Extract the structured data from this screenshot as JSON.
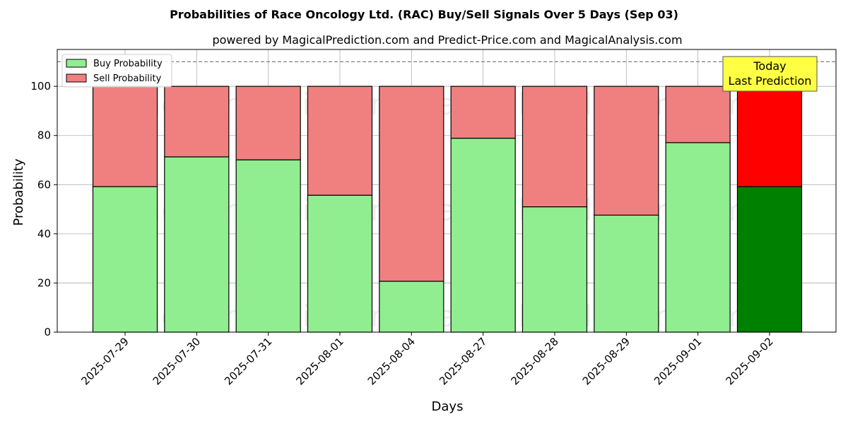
{
  "chart_data": {
    "type": "bar",
    "stacked": true,
    "title": "Probabilities of Race Oncology Ltd. (RAC) Buy/Sell Signals Over 5 Days (Sep 03)",
    "subtitle": "powered by MagicalPrediction.com and Predict-Price.com and MagicalAnalysis.com",
    "xlabel": "Days",
    "ylabel": "Probability",
    "ylim": [
      0,
      115
    ],
    "yticks": [
      0,
      20,
      40,
      60,
      80,
      100
    ],
    "categories": [
      "2025-07-29",
      "2025-07-30",
      "2025-07-31",
      "2025-08-01",
      "2025-08-04",
      "2025-08-27",
      "2025-08-28",
      "2025-08-29",
      "2025-09-01",
      "2025-09-02"
    ],
    "series": [
      {
        "name": "Buy Probability",
        "values": [
          59.2,
          71.3,
          70.1,
          55.7,
          20.7,
          78.9,
          51.0,
          47.6,
          77.1,
          59.2
        ],
        "color": "#90ee90",
        "highlight_color": "#008000"
      },
      {
        "name": "Sell Probability",
        "values": [
          40.8,
          28.7,
          29.9,
          44.3,
          79.3,
          21.1,
          49.0,
          52.4,
          22.9,
          40.8
        ],
        "color": "#f08080",
        "highlight_color": "#ff0000"
      }
    ],
    "reference_line": {
      "y": 110,
      "style": "dashed",
      "color": "#808080"
    },
    "annotation": {
      "lines": [
        "Today",
        "Last Prediction"
      ],
      "background": "#ffff44"
    },
    "legend_position": "upper-left",
    "grid": true,
    "watermarks": [
      "MagicalAnalysis.com",
      "MagicalPrediction.com"
    ]
  }
}
